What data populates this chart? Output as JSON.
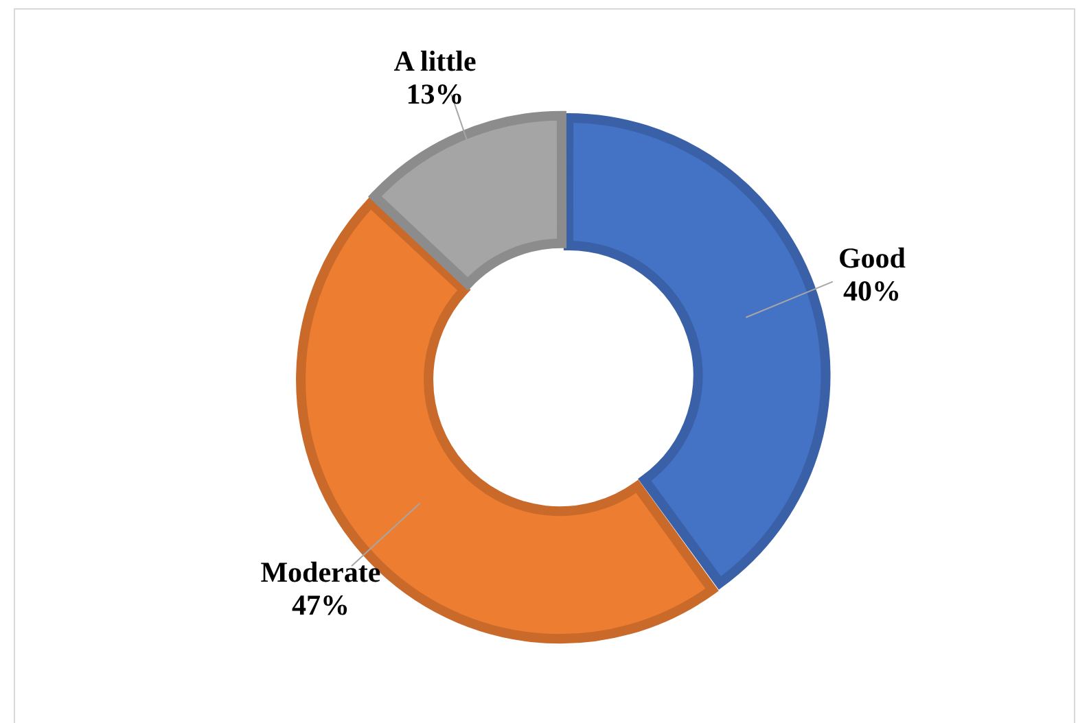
{
  "chart_data": {
    "type": "donut",
    "categories": [
      "Good",
      "Moderate",
      "A little"
    ],
    "values": [
      40,
      47,
      13
    ],
    "colors": [
      "#4472c4",
      "#ed7d31",
      "#a5a5a5"
    ],
    "value_labels": [
      "40%",
      "47%",
      "13%"
    ]
  }
}
